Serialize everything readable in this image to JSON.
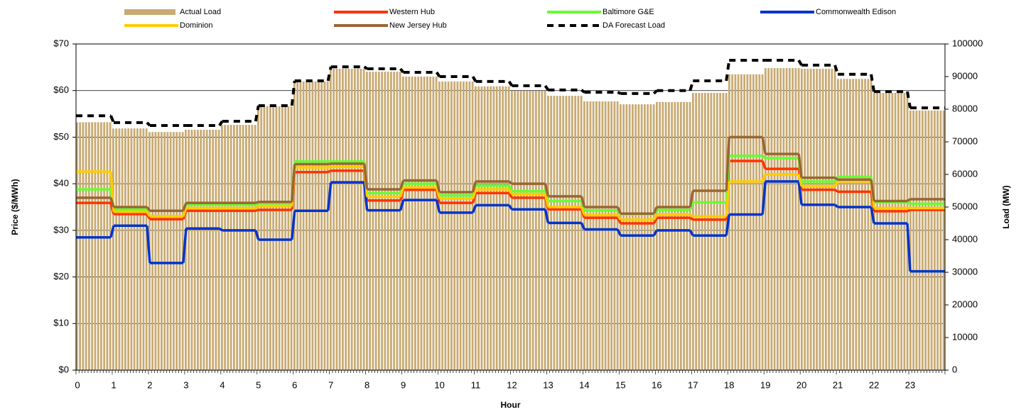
{
  "chart_data": {
    "type": "combo",
    "xlabel": "Hour",
    "ylabel": "Price ($/MWh)",
    "y2label": "Load (MW)",
    "categories": [
      "0",
      "1",
      "2",
      "3",
      "4",
      "5",
      "6",
      "7",
      "8",
      "9",
      "10",
      "11",
      "12",
      "13",
      "14",
      "15",
      "16",
      "17",
      "18",
      "19",
      "20",
      "21",
      "22",
      "23"
    ],
    "ylim": [
      0,
      70
    ],
    "yticks": [
      {
        "value": 0,
        "label": "$0"
      },
      {
        "value": 10,
        "label": "$10"
      },
      {
        "value": 20,
        "label": "$20"
      },
      {
        "value": 30,
        "label": "$30"
      },
      {
        "value": 40,
        "label": "$40"
      },
      {
        "value": 50,
        "label": "$50"
      },
      {
        "value": 60,
        "label": "$60"
      },
      {
        "value": 70,
        "label": "$70"
      }
    ],
    "y2lim": [
      0,
      100000
    ],
    "y2ticks": [
      0,
      10000,
      20000,
      30000,
      40000,
      50000,
      60000,
      70000,
      80000,
      90000,
      100000
    ],
    "grid": true,
    "legend": "top",
    "series": [
      {
        "name": "Actual Load",
        "type": "bar",
        "axis": "y2",
        "color": "#c8aa72",
        "values": [
          76000,
          74100,
          73000,
          73700,
          75200,
          80900,
          88500,
          92400,
          91500,
          90000,
          88500,
          87000,
          85600,
          84100,
          82400,
          81500,
          82200,
          85000,
          90700,
          92600,
          92400,
          89300,
          85000,
          79600
        ]
      },
      {
        "name": "Western Hub",
        "type": "line",
        "color": "#ff3300",
        "values": [
          35.9,
          33.5,
          32.4,
          34.2,
          34.2,
          34.4,
          42.5,
          42.8,
          36.4,
          38.7,
          35.9,
          38.0,
          37.0,
          34.5,
          32.7,
          31.5,
          32.7,
          32.3,
          44.9,
          43.2,
          38.7,
          38.3,
          34.1,
          34.4
        ]
      },
      {
        "name": "Baltimore G&E",
        "type": "line",
        "color": "#66ff33",
        "values": [
          38.8,
          34.5,
          33.0,
          35.5,
          35.5,
          35.8,
          44.8,
          44.8,
          38.0,
          40.0,
          37.5,
          39.6,
          38.4,
          36.3,
          34.3,
          33.5,
          34.4,
          36.0,
          46.0,
          45.5,
          40.5,
          41.5,
          36.0,
          35.7
        ]
      },
      {
        "name": "Commonwealth Edison",
        "type": "line",
        "color": "#0033cc",
        "values": [
          28.5,
          31.0,
          23.0,
          30.4,
          30.0,
          28.0,
          34.2,
          40.3,
          34.3,
          36.5,
          33.8,
          35.4,
          34.5,
          31.6,
          30.2,
          28.9,
          30.0,
          28.9,
          33.4,
          40.5,
          35.5,
          35.0,
          31.5,
          21.2
        ]
      },
      {
        "name": "Dominion",
        "type": "line",
        "color": "#ffcc00",
        "values": [
          42.6,
          34.0,
          33.0,
          34.8,
          34.8,
          35.2,
          43.5,
          43.6,
          37.2,
          39.2,
          36.8,
          38.8,
          37.8,
          35.0,
          33.3,
          32.3,
          33.4,
          33.0,
          40.5,
          42.0,
          39.5,
          40.5,
          34.8,
          34.8
        ]
      },
      {
        "name": "New Jersey Hub",
        "type": "line",
        "color": "#996633",
        "values": [
          37.0,
          35.0,
          34.2,
          35.9,
          35.9,
          36.1,
          44.2,
          44.3,
          38.8,
          40.7,
          38.2,
          40.5,
          40.0,
          37.3,
          35.0,
          33.6,
          35.0,
          38.5,
          50.0,
          46.4,
          41.3,
          40.9,
          36.3,
          36.7
        ]
      },
      {
        "name": "DA Forecast Load",
        "type": "dashed",
        "axis": "y2",
        "color": "#000000",
        "values": [
          78000,
          75900,
          75000,
          75000,
          76300,
          81100,
          88700,
          93000,
          92400,
          91300,
          90000,
          88500,
          87200,
          85900,
          85200,
          84800,
          85700,
          88700,
          95000,
          95000,
          93500,
          90700,
          85400,
          80400
        ]
      }
    ]
  }
}
